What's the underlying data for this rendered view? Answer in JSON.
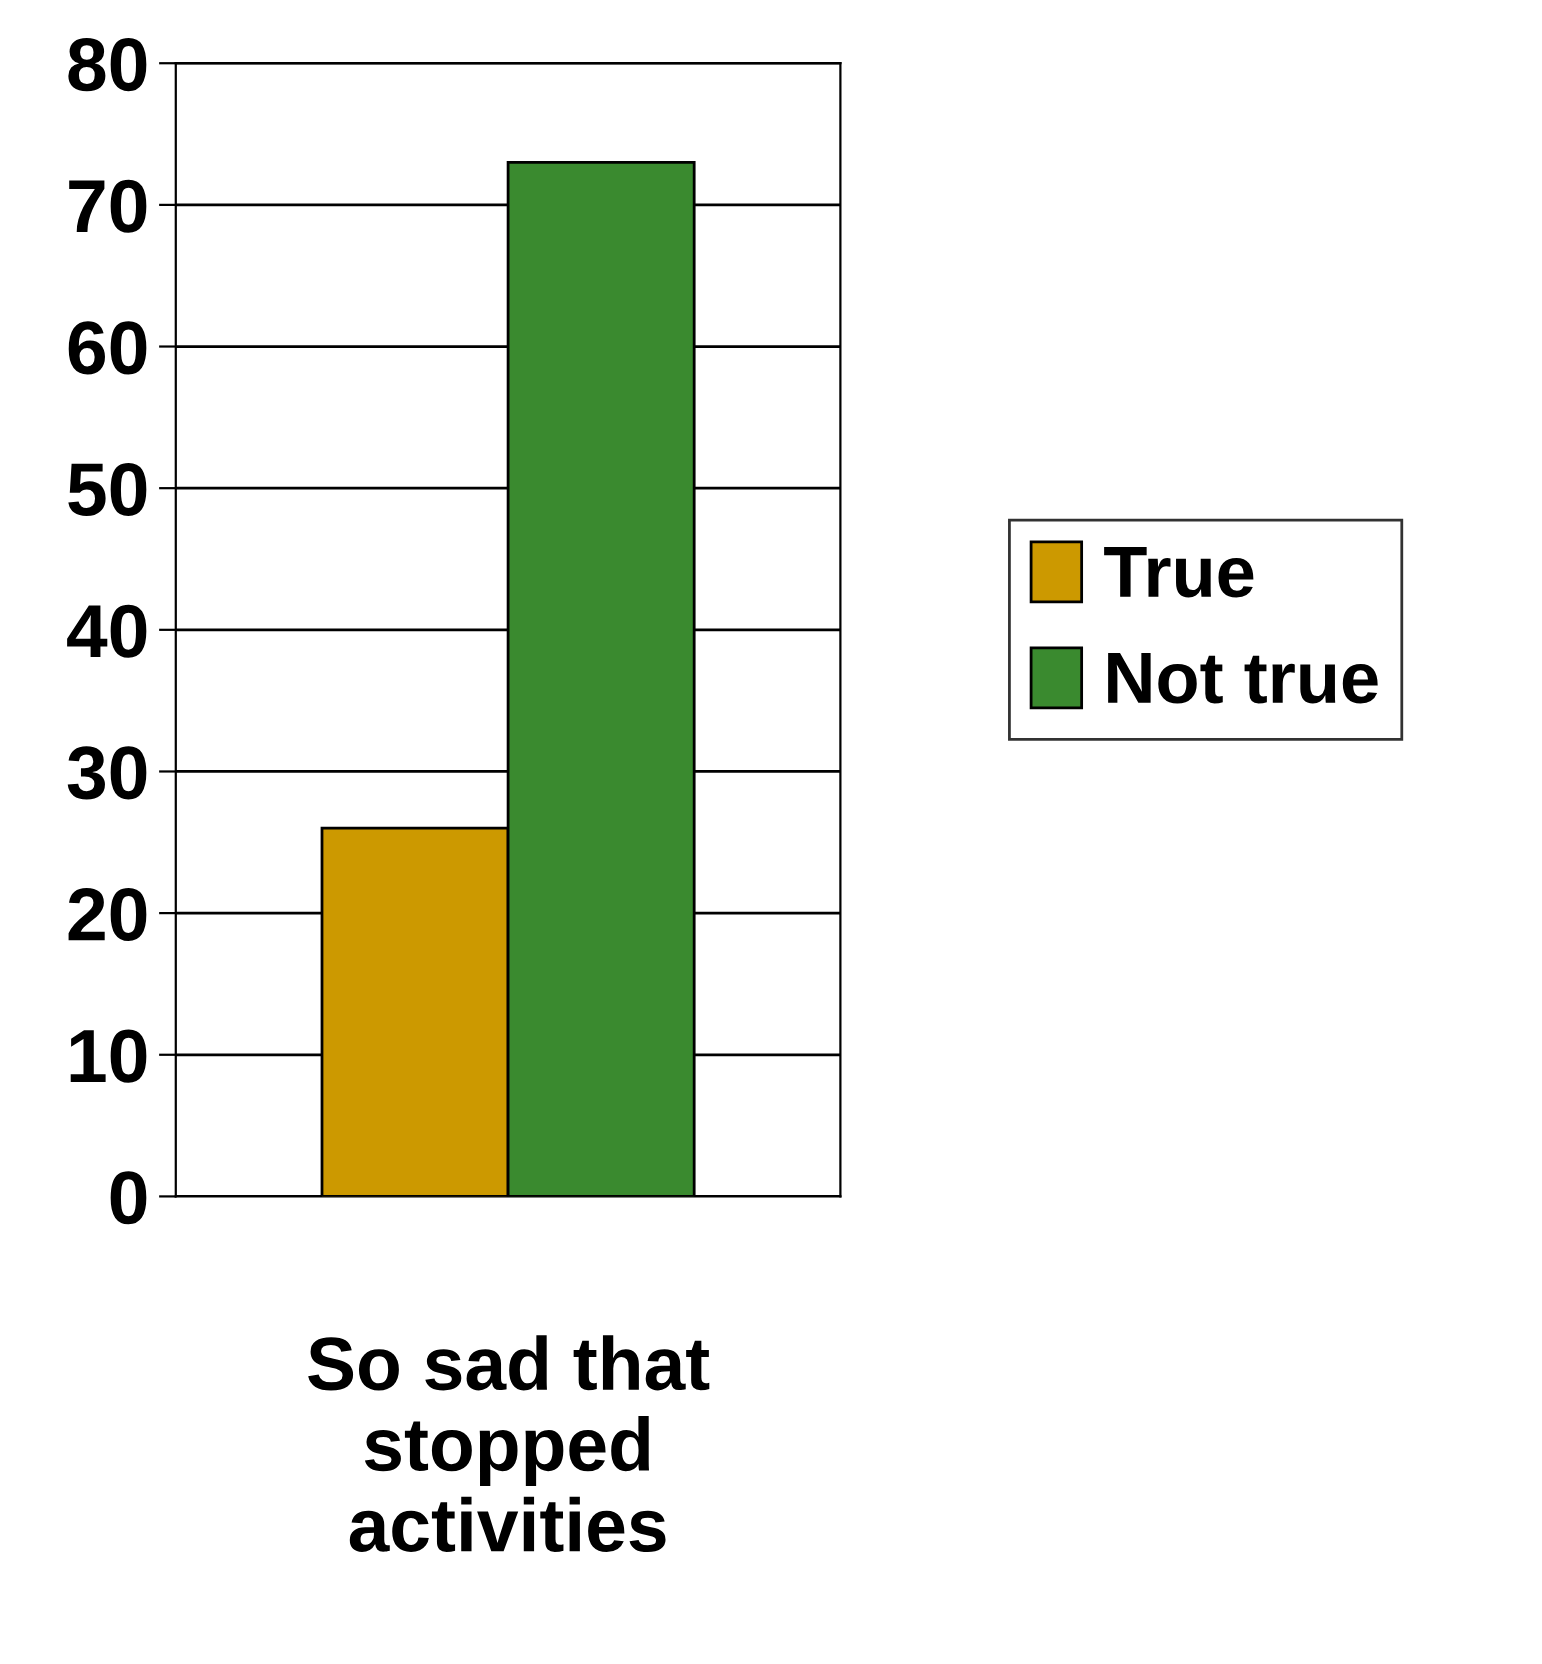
{
  "chart_data": {
    "type": "bar",
    "categories": [
      "So sad that\nstopped\nactivities"
    ],
    "series": [
      {
        "name": "True",
        "color": "#cc9900",
        "values": [
          26
        ]
      },
      {
        "name": "Not true",
        "color": "#3a8a2f",
        "values": [
          73
        ]
      }
    ],
    "ylim": [
      0,
      80
    ],
    "yticks": [
      0,
      10,
      20,
      30,
      40,
      50,
      60,
      70,
      80
    ],
    "grid": "y",
    "legend": "right"
  }
}
